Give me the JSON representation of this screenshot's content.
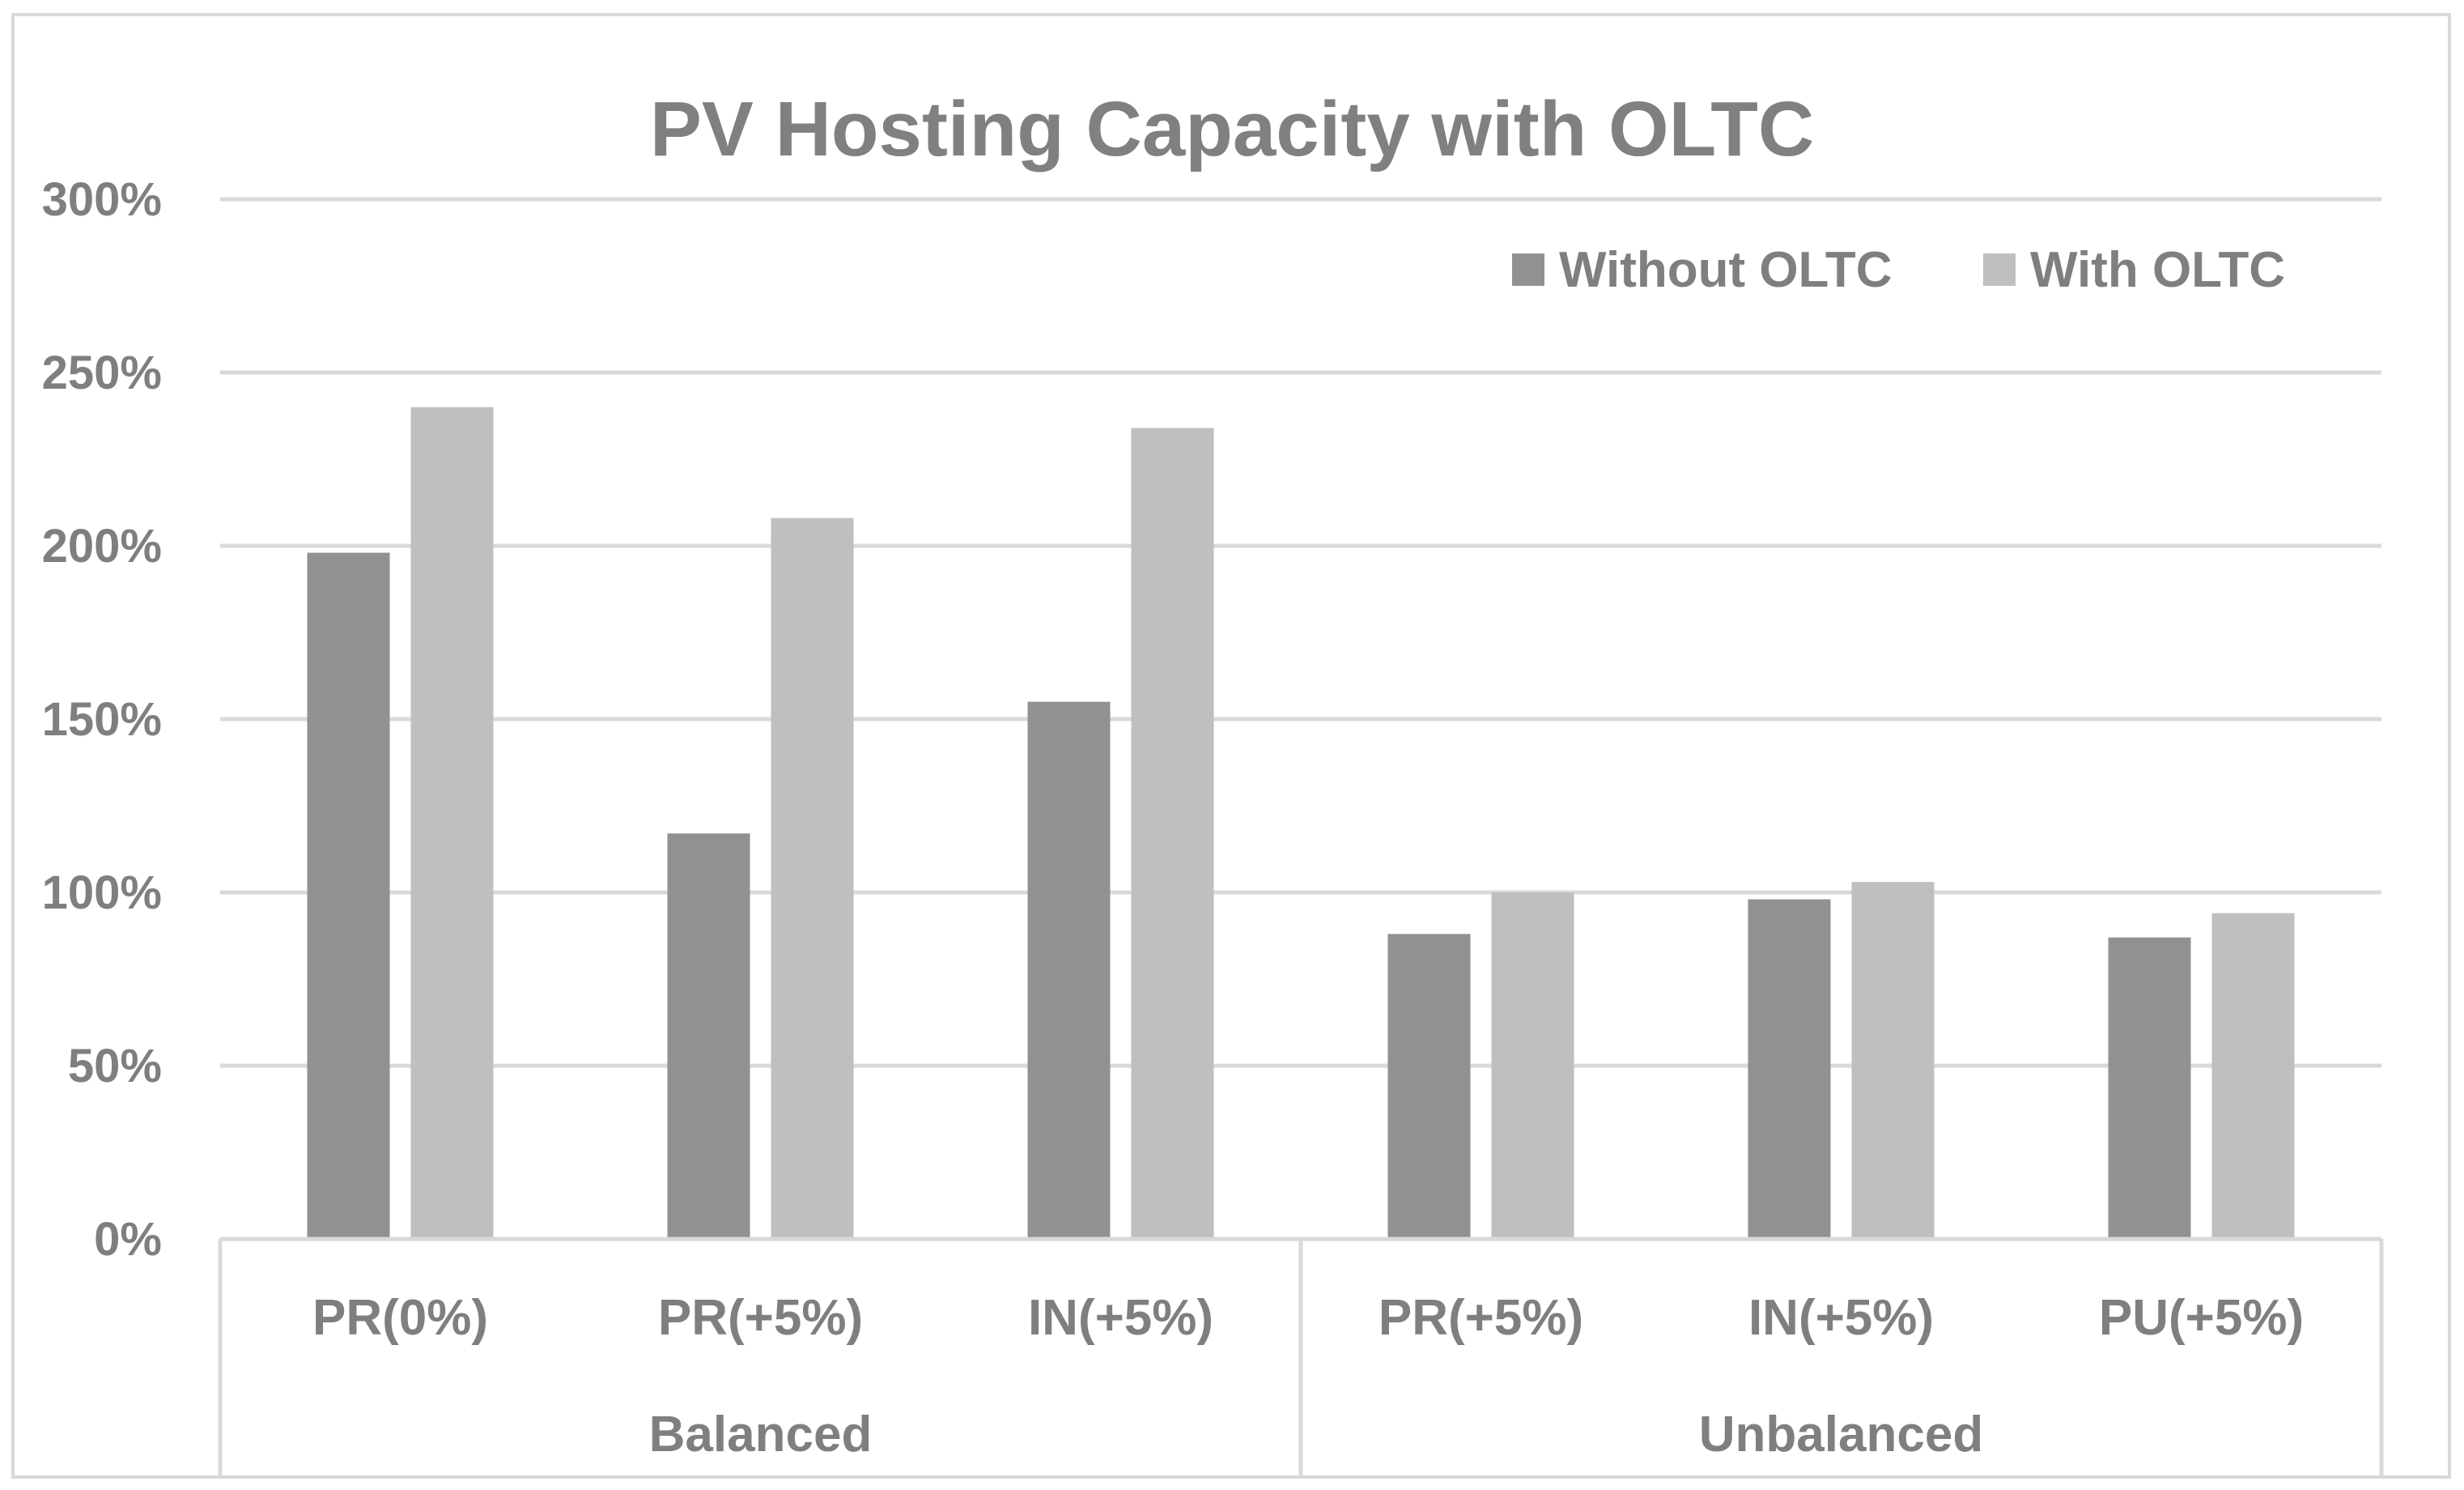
{
  "chart_data": {
    "type": "bar",
    "title": "PV Hosting Capacity with OLTC",
    "xlabel": "",
    "ylabel": "",
    "ylim": [
      0,
      300
    ],
    "yticks": [
      "0%",
      "50%",
      "100%",
      "150%",
      "200%",
      "250%",
      "300%"
    ],
    "ytick_values": [
      0,
      50,
      100,
      150,
      200,
      250,
      300
    ],
    "categories": [
      "PR(0%)",
      "PR(+5%)",
      "IN(+5%)",
      "PR(+5%)",
      "IN(+5%)",
      "PU(+5%)"
    ],
    "groups": [
      {
        "label": "Balanced",
        "count": 3
      },
      {
        "label": "Unbalanced",
        "count": 3
      }
    ],
    "series": [
      {
        "name": "Without OLTC",
        "color": "#919191",
        "values": [
          198,
          117,
          155,
          88,
          98,
          87
        ]
      },
      {
        "name": "With OLTC",
        "color": "#bfbfbf",
        "values": [
          240,
          208,
          234,
          100,
          103,
          94
        ]
      }
    ],
    "legend_position": "top-right",
    "grid": true
  }
}
